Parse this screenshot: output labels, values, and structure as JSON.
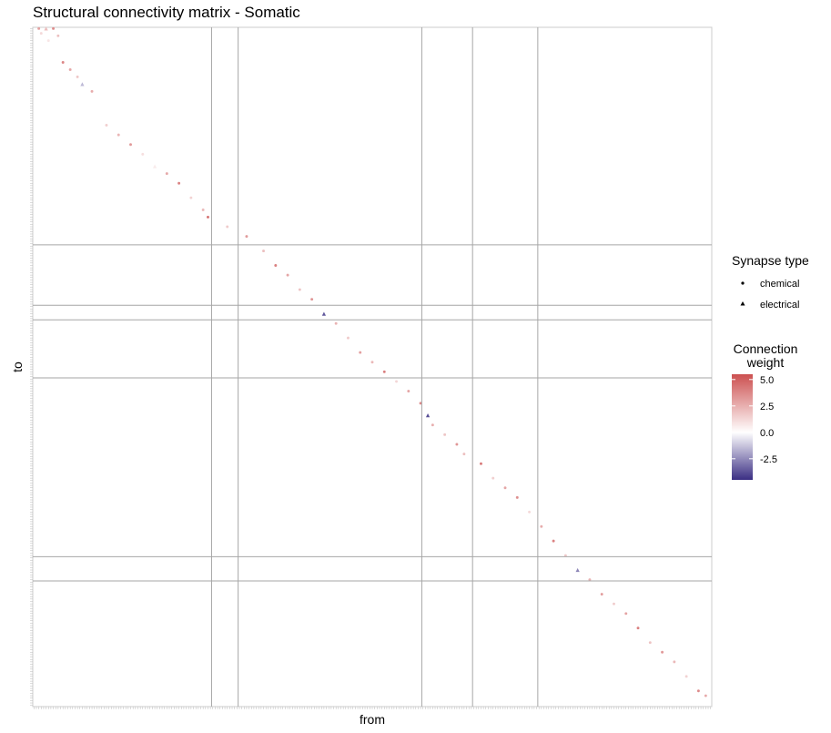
{
  "chart_data": {
    "type": "heatmap",
    "title": "Structural connectivity matrix - Somatic",
    "xlabel": "from",
    "ylabel": "to",
    "legend_shape": {
      "title": "Synapse type",
      "entries": [
        "chemical",
        "electrical"
      ]
    },
    "legend_color": {
      "title_line1": "Connection",
      "title_line2": "weight",
      "ticks": [
        5.0,
        2.5,
        0.0,
        -2.5
      ],
      "tick_labels": [
        "5.0",
        "2.5",
        "0.0",
        "-2.5"
      ],
      "range": [
        -4.5,
        5.5
      ],
      "colors": {
        "high": "#cc5050",
        "mid": "#ffffff",
        "low": "#3a2e83"
      }
    },
    "n_neurons": 281,
    "group_boundaries": [
      74,
      85,
      161,
      182,
      209
    ],
    "row_group_boundaries": [
      90,
      115,
      121,
      145,
      219,
      229
    ],
    "cells": [
      [
        2,
        0,
        1,
        3.0
      ],
      [
        5,
        0,
        2,
        2.1
      ],
      [
        8,
        0,
        1,
        3.6
      ],
      [
        3,
        2,
        1,
        1.2
      ],
      [
        10,
        3,
        1,
        2.0
      ],
      [
        6,
        5,
        1,
        0.8
      ],
      [
        12,
        14,
        1,
        3.8
      ],
      [
        15,
        17,
        1,
        2.8
      ],
      [
        18,
        20,
        1,
        1.8
      ],
      [
        20,
        23,
        2,
        -1.5
      ],
      [
        24,
        26,
        1,
        2.6
      ],
      [
        30,
        40,
        1,
        1.5
      ],
      [
        35,
        44,
        1,
        2.3
      ],
      [
        40,
        48,
        1,
        3.2
      ],
      [
        45,
        52,
        1,
        1.0
      ],
      [
        50,
        57,
        2,
        0.6
      ],
      [
        55,
        60,
        1,
        2.7
      ],
      [
        60,
        64,
        1,
        3.9
      ],
      [
        65,
        70,
        1,
        1.4
      ],
      [
        70,
        75,
        1,
        2.2
      ],
      [
        72,
        78,
        1,
        4.5
      ],
      [
        80,
        82,
        1,
        1.6
      ],
      [
        88,
        86,
        1,
        3.1
      ],
      [
        95,
        92,
        1,
        2.0
      ],
      [
        100,
        98,
        1,
        4.0
      ],
      [
        105,
        102,
        1,
        2.8
      ],
      [
        110,
        108,
        1,
        1.9
      ],
      [
        115,
        112,
        1,
        3.4
      ],
      [
        120,
        118,
        2,
        -3.6
      ],
      [
        125,
        122,
        1,
        2.4
      ],
      [
        130,
        128,
        1,
        1.7
      ],
      [
        135,
        134,
        1,
        3.0
      ],
      [
        140,
        138,
        1,
        2.2
      ],
      [
        145,
        142,
        1,
        4.1
      ],
      [
        150,
        146,
        1,
        1.3
      ],
      [
        155,
        150,
        1,
        2.9
      ],
      [
        160,
        155,
        1,
        3.7
      ],
      [
        163,
        160,
        2,
        -3.8
      ],
      [
        165,
        164,
        1,
        2.5
      ],
      [
        170,
        168,
        1,
        1.8
      ],
      [
        175,
        172,
        1,
        3.3
      ],
      [
        178,
        176,
        1,
        2.0
      ],
      [
        185,
        180,
        1,
        4.2
      ],
      [
        190,
        186,
        1,
        1.5
      ],
      [
        195,
        190,
        1,
        2.8
      ],
      [
        200,
        194,
        1,
        3.5
      ],
      [
        205,
        200,
        1,
        1.2
      ],
      [
        210,
        206,
        1,
        2.6
      ],
      [
        215,
        212,
        1,
        3.9
      ],
      [
        220,
        218,
        1,
        1.7
      ],
      [
        225,
        224,
        2,
        -2.6
      ],
      [
        230,
        228,
        1,
        2.4
      ],
      [
        235,
        234,
        1,
        3.1
      ],
      [
        240,
        238,
        1,
        1.6
      ],
      [
        245,
        242,
        1,
        2.9
      ],
      [
        250,
        248,
        1,
        4.0
      ],
      [
        255,
        254,
        1,
        1.9
      ],
      [
        260,
        258,
        1,
        3.2
      ],
      [
        265,
        262,
        1,
        2.2
      ],
      [
        270,
        268,
        1,
        1.4
      ],
      [
        275,
        274,
        1,
        3.6
      ],
      [
        278,
        276,
        1,
        2.7
      ]
    ]
  }
}
